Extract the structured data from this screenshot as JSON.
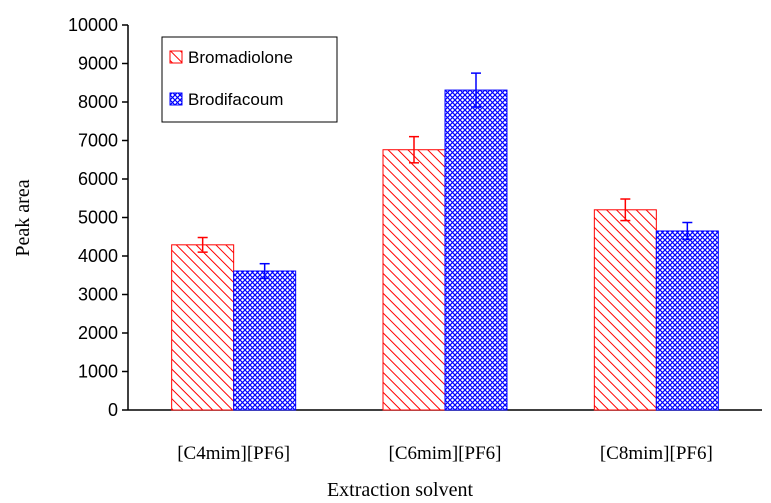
{
  "chart_data": {
    "type": "bar",
    "categories": [
      "[C4mim][PF6]",
      "[C6mim][PF6]",
      "[C8mim][PF6]"
    ],
    "series": [
      {
        "name": "Bromadiolone",
        "values": [
          4290,
          6760,
          5200
        ],
        "errors": [
          190,
          340,
          280
        ],
        "color": "#ff0000",
        "pattern": "diagonal-hatch"
      },
      {
        "name": "Brodifacoum",
        "values": [
          3610,
          8310,
          4650
        ],
        "errors": [
          190,
          440,
          220
        ],
        "color": "#0000ff",
        "pattern": "cross-hatch"
      }
    ],
    "xlabel": "Extraction solvent",
    "ylabel": "Peak area",
    "ylim": [
      0,
      10000
    ],
    "yticks": [
      "0",
      "1000",
      "2000",
      "3000",
      "4000",
      "5000",
      "6000",
      "7000",
      "8000",
      "9000",
      "10000"
    ],
    "grid": false,
    "legend_position": "top-left"
  }
}
